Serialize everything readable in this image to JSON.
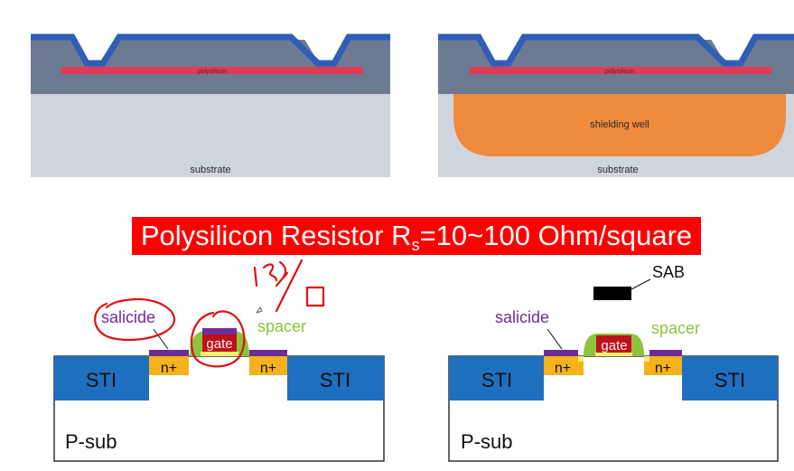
{
  "top_left": {
    "layer_label": "polysilicon",
    "base_label": "substrate"
  },
  "top_right": {
    "layer_label": "polysilicon",
    "well_label": "shielding well",
    "base_label": "substrate"
  },
  "banner": {
    "text_main": "Polysilicon Resistor R",
    "text_sub": "s",
    "text_tail": "=10~100 Ohm/square"
  },
  "bottom_left": {
    "sti_left": "STI",
    "sti_right": "STI",
    "nplus_left": "n+",
    "nplus_right": "n+",
    "gate": "gate",
    "salicide": "salicide",
    "spacer": "spacer",
    "substrate": "P-sub"
  },
  "bottom_right": {
    "sti_left": "STI",
    "sti_right": "STI",
    "nplus_left": "n+",
    "nplus_right": "n+",
    "gate": "gate",
    "salicide": "salicide",
    "spacer": "spacer",
    "sab": "SAB",
    "substrate": "P-sub"
  },
  "colors": {
    "top_layer": "#6c7b91",
    "substrate": "#cfd5dd",
    "metal": "#2f5db8",
    "poly": "#e03a55",
    "well": "#f08a3c",
    "sti": "#1f6fbf",
    "nplus": "#f5b21a",
    "gate": "#c0101a",
    "salicide": "#6e2c9a",
    "spacer": "#8cc43c",
    "annotation": "#e01010"
  }
}
